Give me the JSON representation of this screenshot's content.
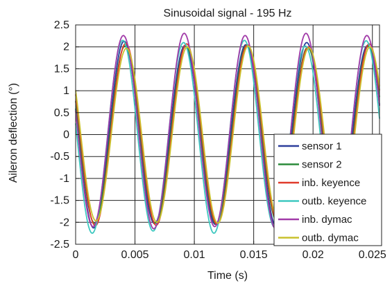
{
  "chart_data": {
    "type": "line",
    "title": "Sinusoidal signal - 195 Hz",
    "xlabel": "Time (s)",
    "ylabel": "Aileron deflection (°)",
    "xlim": [
      0,
      0.0256
    ],
    "ylim": [
      -2.5,
      2.5
    ],
    "xticks": [
      0,
      0.005,
      0.01,
      0.015,
      0.02,
      0.025
    ],
    "xtick_labels": [
      "0",
      "0.005",
      "0.01",
      "0.015",
      "0.02",
      "0.025"
    ],
    "yticks": [
      -2.5,
      -2,
      -1.5,
      -1,
      -0.5,
      0,
      0.5,
      1,
      1.5,
      2,
      2.5
    ],
    "ytick_labels": [
      "-2.5",
      "-2",
      "-1.5",
      "-1",
      "-0.5",
      "0",
      "0.5",
      "1",
      "1.5",
      "2",
      "2.5"
    ],
    "grid": true,
    "legend_position": "bottom-right",
    "frequency_hz": 195,
    "series": [
      {
        "name": "sensor 1",
        "color": "#2b3d9a",
        "amplitude": 2.05,
        "offset": 0.0,
        "phase_shift_s": 0.0,
        "peak_extra": [
          0.08,
          -0.02,
          0.0,
          0.05,
          -0.02,
          0.0
        ]
      },
      {
        "name": "sensor 2",
        "color": "#2a8a3a",
        "amplitude": 2.02,
        "offset": 0.0,
        "phase_shift_s": 8e-05,
        "peak_extra": [
          0.0,
          0.0,
          0.02,
          -0.03,
          0.0,
          0.0
        ]
      },
      {
        "name": "inb. keyence",
        "color": "#e03a2a",
        "amplitude": 2.05,
        "offset": 0.0,
        "phase_shift_s": 0.00014,
        "peak_extra": [
          0.03,
          0.02,
          0.0,
          -0.05,
          0.02,
          0.0
        ]
      },
      {
        "name": "outb. keyence",
        "color": "#3ec8c0",
        "amplitude": 2.15,
        "offset": -0.05,
        "phase_shift_s": -0.00012,
        "peak_extra": [
          0.05,
          0.0,
          0.05,
          -0.08,
          0.04,
          0.0
        ]
      },
      {
        "name": "inb. dymac",
        "color": "#a13aa8",
        "amplitude": 2.18,
        "offset": 0.08,
        "phase_shift_s": -6e-05,
        "peak_extra": [
          0.0,
          0.05,
          0.0,
          0.05,
          0.0,
          0.0
        ]
      },
      {
        "name": "outb. dymac",
        "color": "#c9c12c",
        "amplitude": 2.0,
        "offset": 0.0,
        "phase_shift_s": 0.0002,
        "peak_extra": [
          -0.03,
          0.0,
          0.02,
          -0.02,
          0.0,
          0.0
        ]
      }
    ]
  }
}
